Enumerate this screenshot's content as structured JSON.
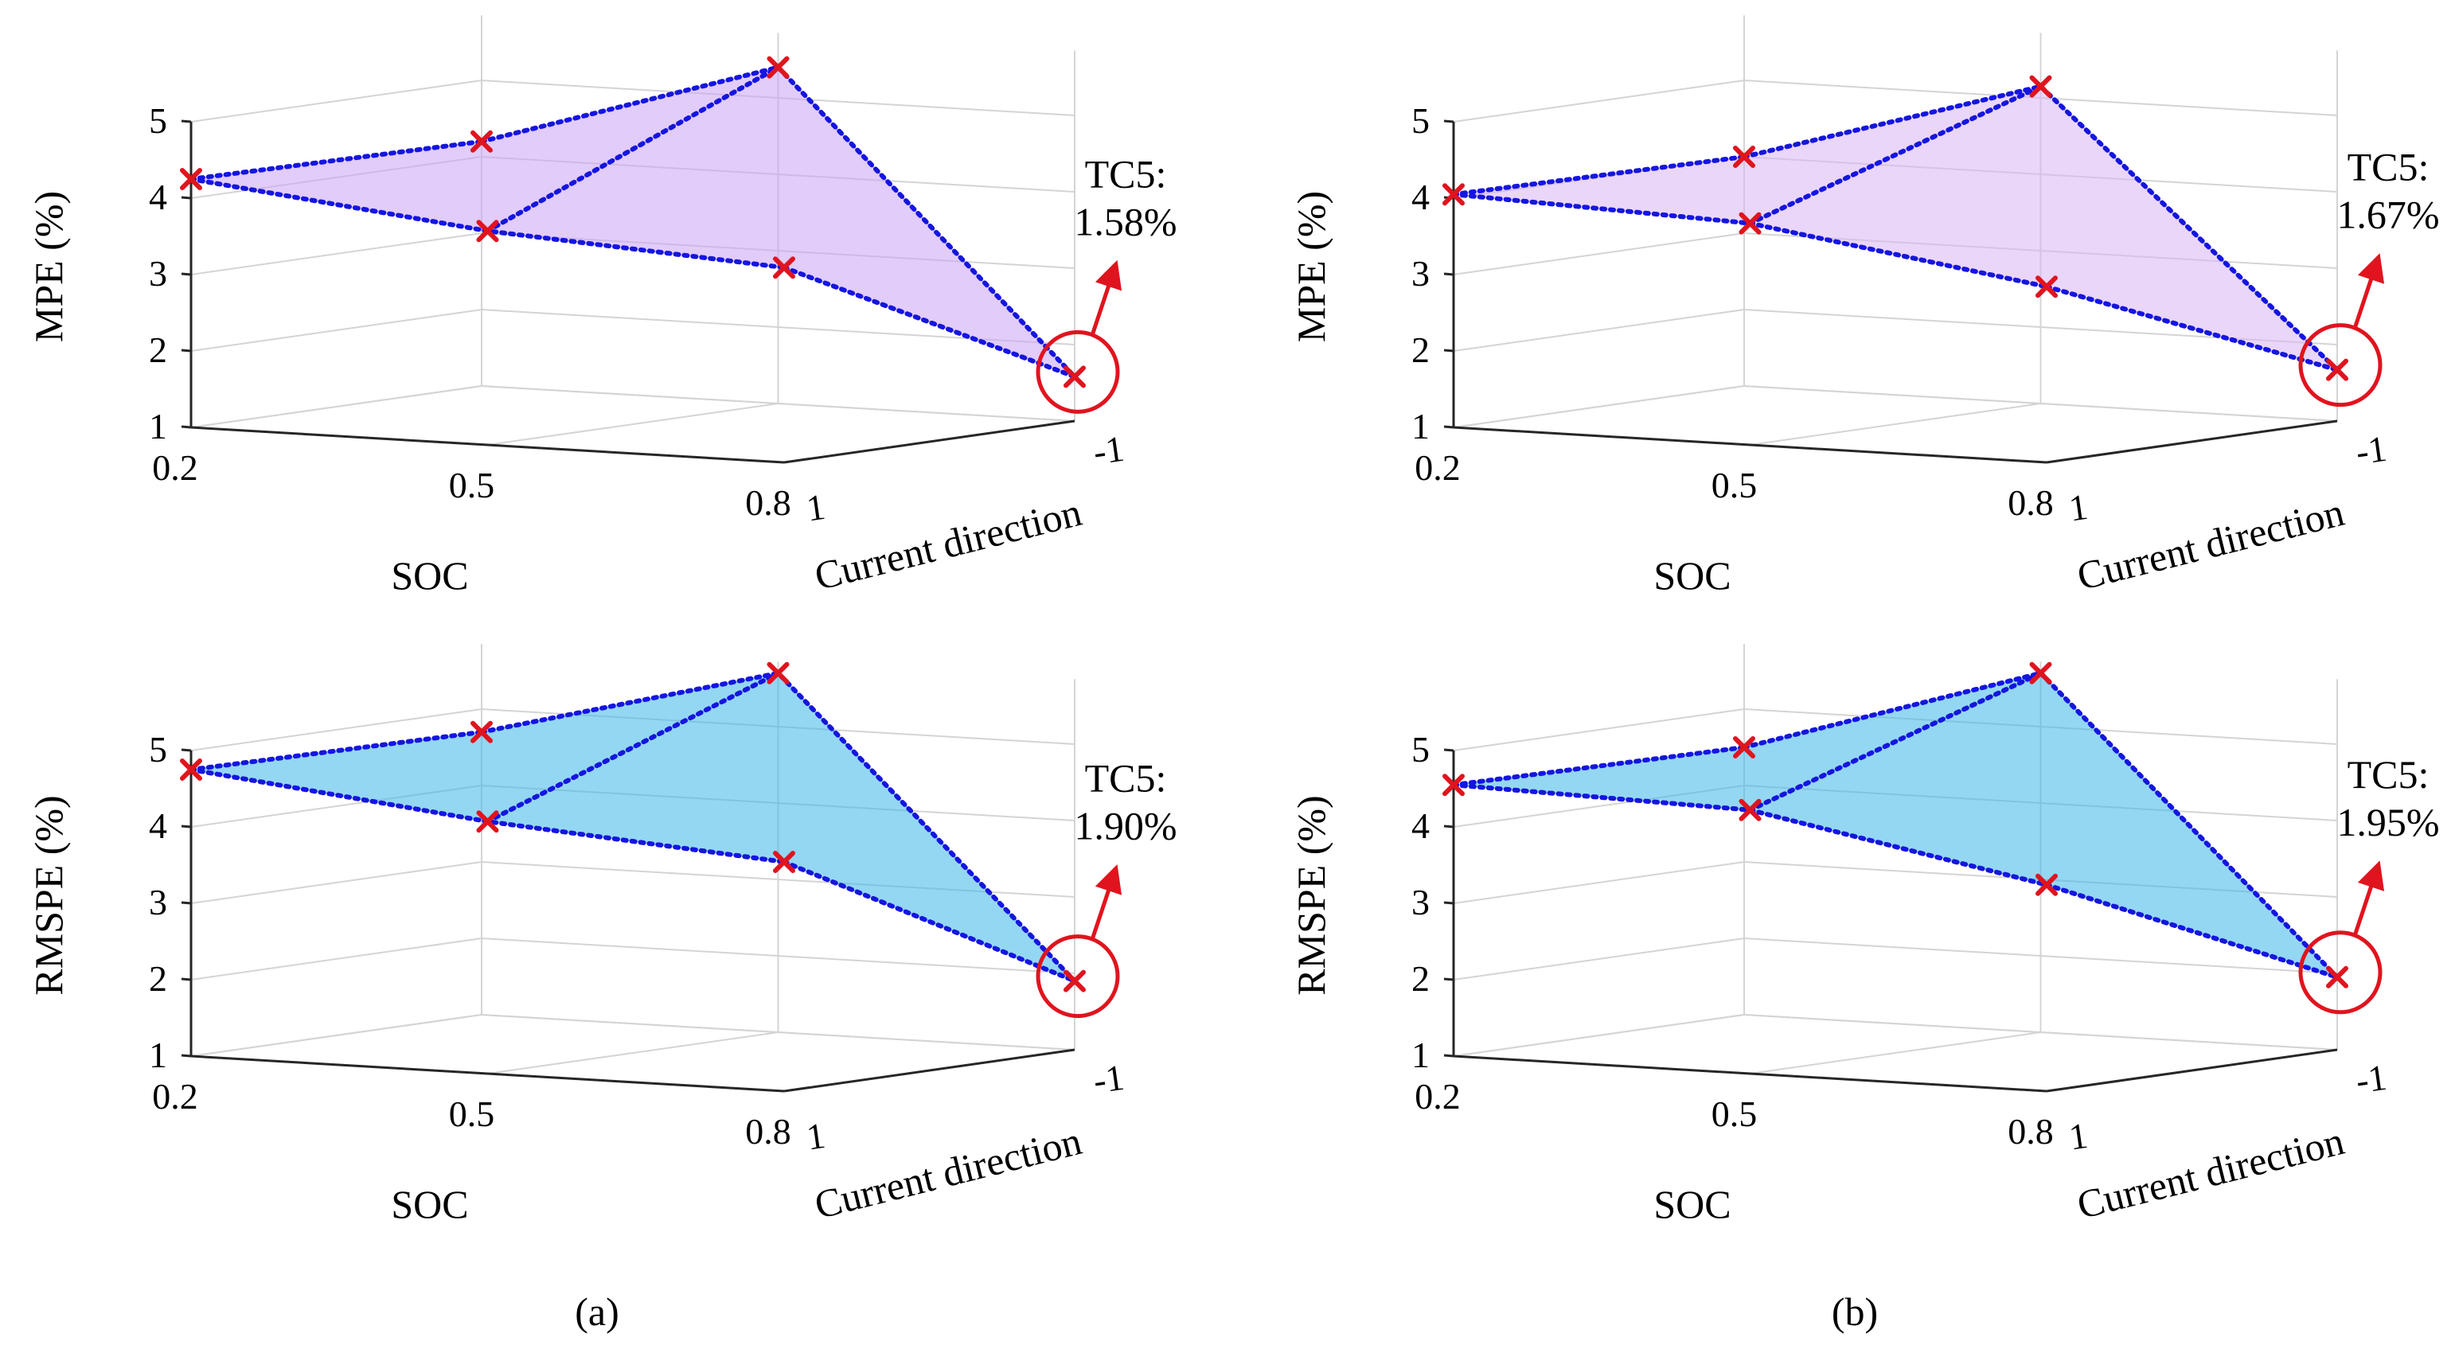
{
  "figure": {
    "panel_labels": [
      "(a)",
      "(b)"
    ]
  },
  "chart_data": [
    {
      "type": "surface3d",
      "panel": "(a)",
      "ylabel": "MPE (%)",
      "xlabel": "SOC",
      "zlabel": "Current direction",
      "soc_ticks": [
        "0.2",
        "0.5",
        "0.8"
      ],
      "dir_ticks": [
        "1",
        "-1"
      ],
      "value_ticks": [
        "1",
        "2",
        "3",
        "4",
        "5"
      ],
      "ylim": [
        1,
        5
      ],
      "surface_color": "#c9a2f5",
      "line_color": "#1515e0",
      "marker_color": "#e0141e",
      "annotation": {
        "label": "TC5:",
        "value": "1.58%"
      },
      "points": [
        {
          "soc": 0.2,
          "direction": 1,
          "value": 4.25
        },
        {
          "soc": 0.5,
          "direction": 1,
          "value": 3.8
        },
        {
          "soc": 0.8,
          "direction": 1,
          "value": 3.55
        },
        {
          "soc": 0.2,
          "direction": -1,
          "value": 4.2
        },
        {
          "soc": 0.5,
          "direction": -1,
          "value": 5.4
        },
        {
          "soc": 0.8,
          "direction": -1,
          "value": 1.58
        }
      ]
    },
    {
      "type": "surface3d",
      "panel": "(b)",
      "ylabel": "MPE (%)",
      "xlabel": "SOC",
      "zlabel": "Current direction",
      "soc_ticks": [
        "0.2",
        "0.5",
        "0.8"
      ],
      "dir_ticks": [
        "1",
        "-1"
      ],
      "value_ticks": [
        "1",
        "2",
        "3",
        "4",
        "5"
      ],
      "ylim": [
        1,
        5
      ],
      "surface_color": "#d8b4f2",
      "line_color": "#1515e0",
      "marker_color": "#e0141e",
      "annotation": {
        "label": "TC5:",
        "value": "1.67%"
      },
      "points": [
        {
          "soc": 0.2,
          "direction": 1,
          "value": 4.05
        },
        {
          "soc": 0.5,
          "direction": 1,
          "value": 3.9
        },
        {
          "soc": 0.8,
          "direction": 1,
          "value": 3.3
        },
        {
          "soc": 0.2,
          "direction": -1,
          "value": 4.0
        },
        {
          "soc": 0.5,
          "direction": -1,
          "value": 5.15
        },
        {
          "soc": 0.8,
          "direction": -1,
          "value": 1.67
        }
      ]
    },
    {
      "type": "surface3d",
      "panel": "(a)",
      "ylabel": "RMSPE (%)",
      "xlabel": "SOC",
      "zlabel": "Current direction",
      "soc_ticks": [
        "0.2",
        "0.5",
        "0.8"
      ],
      "dir_ticks": [
        "1",
        "-1"
      ],
      "value_ticks": [
        "1",
        "2",
        "3",
        "4",
        "5"
      ],
      "ylim": [
        1,
        5
      ],
      "surface_color": "#3cb6e8",
      "line_color": "#1515e0",
      "marker_color": "#e0141e",
      "annotation": {
        "label": "TC5:",
        "value": "1.90%"
      },
      "points": [
        {
          "soc": 0.2,
          "direction": 1,
          "value": 4.75
        },
        {
          "soc": 0.5,
          "direction": 1,
          "value": 4.3
        },
        {
          "soc": 0.8,
          "direction": 1,
          "value": 4.0
        },
        {
          "soc": 0.2,
          "direction": -1,
          "value": 4.7
        },
        {
          "soc": 0.5,
          "direction": -1,
          "value": 5.7
        },
        {
          "soc": 0.8,
          "direction": -1,
          "value": 1.9
        }
      ]
    },
    {
      "type": "surface3d",
      "panel": "(b)",
      "ylabel": "RMSPE (%)",
      "xlabel": "SOC",
      "zlabel": "Current direction",
      "soc_ticks": [
        "0.2",
        "0.5",
        "0.8"
      ],
      "dir_ticks": [
        "1",
        "-1"
      ],
      "value_ticks": [
        "1",
        "2",
        "3",
        "4",
        "5"
      ],
      "ylim": [
        1,
        5
      ],
      "surface_color": "#3cb6e8",
      "line_color": "#1515e0",
      "marker_color": "#e0141e",
      "annotation": {
        "label": "TC5:",
        "value": "1.95%"
      },
      "points": [
        {
          "soc": 0.2,
          "direction": 1,
          "value": 4.55
        },
        {
          "soc": 0.5,
          "direction": 1,
          "value": 4.45
        },
        {
          "soc": 0.8,
          "direction": 1,
          "value": 3.7
        },
        {
          "soc": 0.2,
          "direction": -1,
          "value": 4.5
        },
        {
          "soc": 0.5,
          "direction": -1,
          "value": 5.7
        },
        {
          "soc": 0.8,
          "direction": -1,
          "value": 1.95
        }
      ]
    }
  ]
}
